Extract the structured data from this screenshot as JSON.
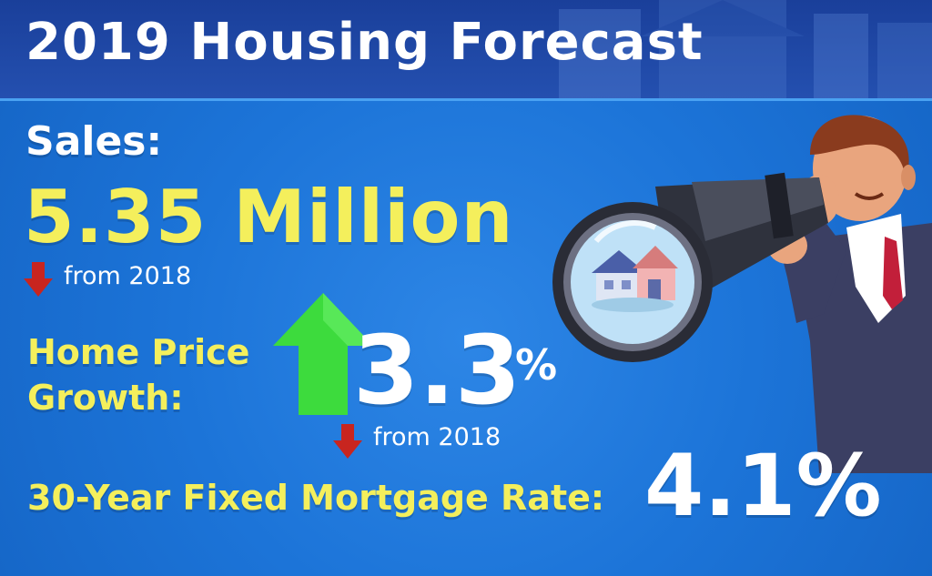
{
  "header": {
    "title": "2019 Housing Forecast"
  },
  "sales": {
    "label": "Sales:",
    "value": "5.35 Million",
    "change_text": "from 2018",
    "change_direction": "down"
  },
  "home_price": {
    "label_line1": "Home Price",
    "label_line2": "Growth:",
    "value": "3.3",
    "unit": "%",
    "trend_direction": "up",
    "change_text": "from 2018",
    "change_direction": "down"
  },
  "mortgage": {
    "label": "30-Year Fixed Mortgage Rate:",
    "value": "4.1%"
  },
  "colors": {
    "background": "#1a73d4",
    "header": "#2450b0",
    "accent_yellow": "#f4ef5c",
    "arrow_up": "#3ddb3d",
    "arrow_down": "#c8251f"
  },
  "icons": [
    "arrow-down-icon",
    "arrow-up-icon",
    "businessman-telescope-illustration",
    "house-icon"
  ]
}
